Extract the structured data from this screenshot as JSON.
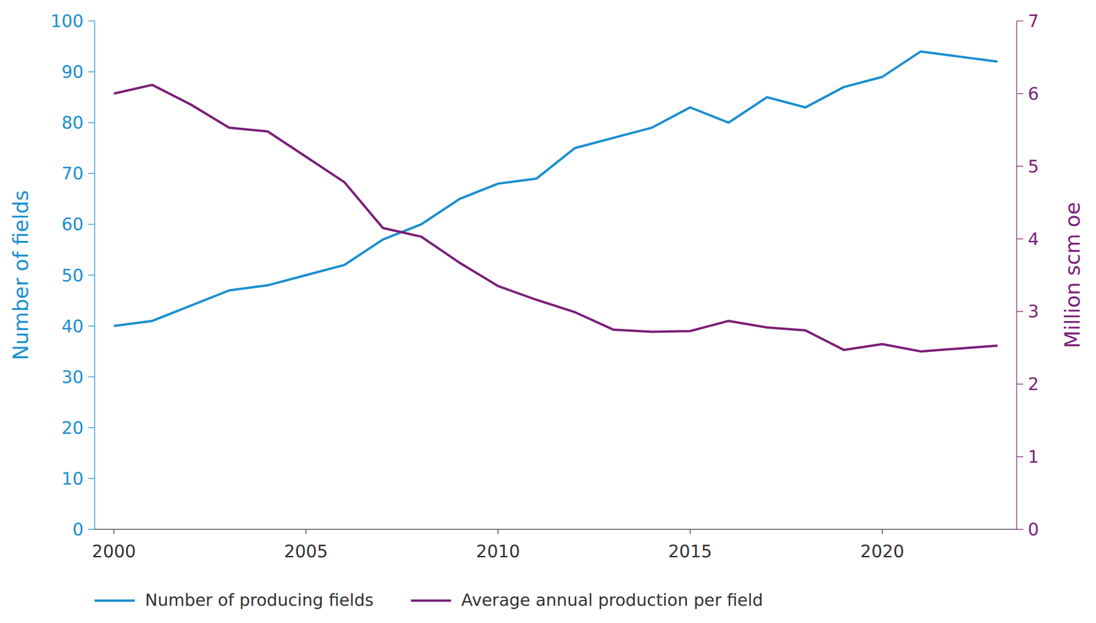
{
  "chart_data": {
    "type": "line",
    "x": [
      2000,
      2001,
      2002,
      2003,
      2004,
      2005,
      2006,
      2007,
      2008,
      2009,
      2010,
      2011,
      2012,
      2013,
      2014,
      2015,
      2016,
      2017,
      2018,
      2019,
      2020,
      2021,
      2022,
      2023
    ],
    "xlim": [
      1999.5,
      2023.5
    ],
    "xticks": [
      2000,
      2005,
      2010,
      2015,
      2020
    ],
    "y_label": "Number of fields",
    "ylim": [
      0,
      100
    ],
    "yticks": [
      0,
      10,
      20,
      30,
      40,
      50,
      60,
      70,
      80,
      90,
      100
    ],
    "y2_label": "Million scm oe",
    "y2lim": [
      0,
      7
    ],
    "y2ticks": [
      0,
      1,
      2,
      3,
      4,
      5,
      6,
      7
    ],
    "grid": false,
    "legend": "bottom",
    "series": [
      {
        "name": "Number of producing fields",
        "color": "#1b8fcf",
        "values": [
          40,
          41,
          44,
          47,
          48,
          50,
          52,
          57,
          60,
          65,
          68,
          69,
          75,
          77,
          79,
          83,
          80,
          85,
          83,
          87,
          89,
          94,
          93,
          92
        ]
      },
      {
        "name": "Average annual production per field",
        "color": "#7a1f79",
        "axis": "y2",
        "values": [
          6.0,
          6.12,
          5.85,
          5.53,
          5.48,
          5.13,
          4.78,
          4.15,
          4.03,
          3.67,
          3.35,
          3.16,
          2.99,
          2.75,
          2.72,
          2.73,
          2.87,
          2.78,
          2.74,
          2.47,
          2.55,
          2.45,
          2.49,
          2.53
        ]
      }
    ]
  }
}
